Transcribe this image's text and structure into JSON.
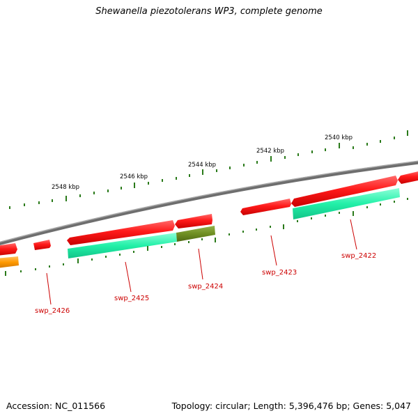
{
  "title": "Shewanella piezotolerans WP3, complete genome",
  "footer": {
    "accession": "Accession: NC_011566",
    "summary": "Topology: circular; Length: 5,396,476 bp; Genes: 5,047"
  },
  "ruler": {
    "labels": [
      "2548 kbp",
      "2546 kbp",
      "2544 kbp",
      "2542 kbp",
      "2540 kbp"
    ]
  },
  "genes": [
    {
      "name": "swp_2426"
    },
    {
      "name": "swp_2425"
    },
    {
      "name": "swp_2424"
    },
    {
      "name": "swp_2423"
    },
    {
      "name": "swp_2422"
    }
  ],
  "colors": {
    "backbone": "#888888",
    "forward_gene": "#ff1a1a",
    "cds_feature": "#22f0a8",
    "highlight_feature": "#6f8f22",
    "orange_feature": "#ff9900",
    "tick": "#2a7a1a",
    "label": "#cc0000"
  }
}
